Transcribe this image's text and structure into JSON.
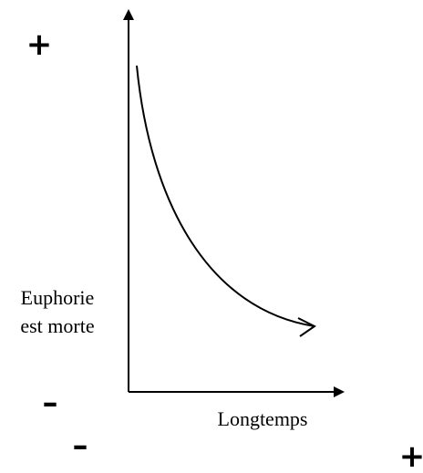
{
  "y_axis": {
    "top_sign": "+",
    "bottom_sign": "–",
    "label": [
      "Euphorie",
      "est morte"
    ]
  },
  "x_axis": {
    "label": "Longtemps",
    "left_sign": "–",
    "right_sign": "+"
  }
}
